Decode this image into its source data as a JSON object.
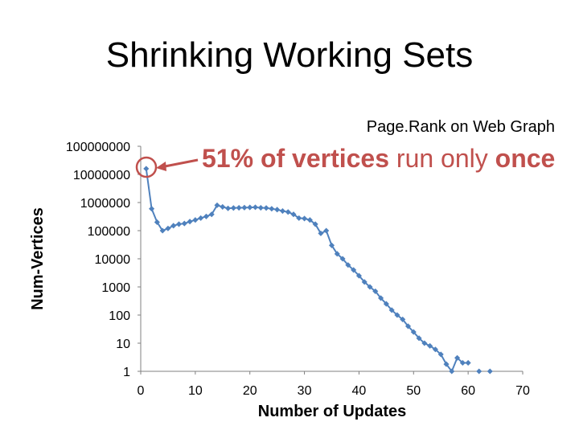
{
  "slide": {
    "title": "Shrinking Working Sets"
  },
  "annotation": {
    "part1": "51% of vertices",
    "part2": " run only ",
    "part3": "once",
    "color": "#c0504d"
  },
  "chart_data": {
    "type": "line",
    "title": "Page.Rank on Web Graph",
    "xlabel": "Number of Updates",
    "ylabel": "Num-Vertices",
    "xlim": [
      0,
      70
    ],
    "ylim": [
      1,
      100000000
    ],
    "yscale": "log",
    "x_ticks": [
      "0",
      "10",
      "20",
      "30",
      "40",
      "50",
      "60",
      "70"
    ],
    "y_ticks": [
      "1",
      "10",
      "100",
      "1000",
      "10000",
      "100000",
      "1000000",
      "10000000",
      "100000000"
    ],
    "grid": false,
    "legend": "none",
    "line_color": "#4f81bd",
    "series": [
      {
        "x": [
          1,
          2,
          3,
          4,
          5,
          6,
          7,
          8,
          9,
          10,
          11,
          12,
          13,
          14,
          15,
          16,
          17,
          18,
          19,
          20,
          21,
          22,
          23,
          24,
          25,
          26,
          27,
          28,
          29,
          30,
          31,
          32,
          33,
          34,
          35,
          36,
          37,
          38,
          39,
          40,
          41,
          42,
          43,
          44,
          45,
          46,
          47,
          48,
          49,
          50,
          51,
          52,
          53,
          54,
          55,
          56,
          57,
          58,
          59,
          60,
          62,
          64
        ],
        "y": [
          16000000,
          600000,
          200000,
          100000,
          120000,
          150000,
          170000,
          180000,
          210000,
          240000,
          280000,
          320000,
          380000,
          800000,
          700000,
          620000,
          640000,
          650000,
          660000,
          670000,
          680000,
          650000,
          640000,
          600000,
          560000,
          500000,
          460000,
          380000,
          280000,
          270000,
          240000,
          170000,
          80000,
          100000,
          30000,
          15000,
          10000,
          6000,
          4000,
          2500,
          1500,
          1000,
          700,
          400,
          250,
          150,
          100,
          70,
          40,
          25,
          15,
          10,
          8,
          6,
          4,
          1.8,
          1,
          3,
          2,
          2,
          1,
          1
        ]
      }
    ]
  }
}
